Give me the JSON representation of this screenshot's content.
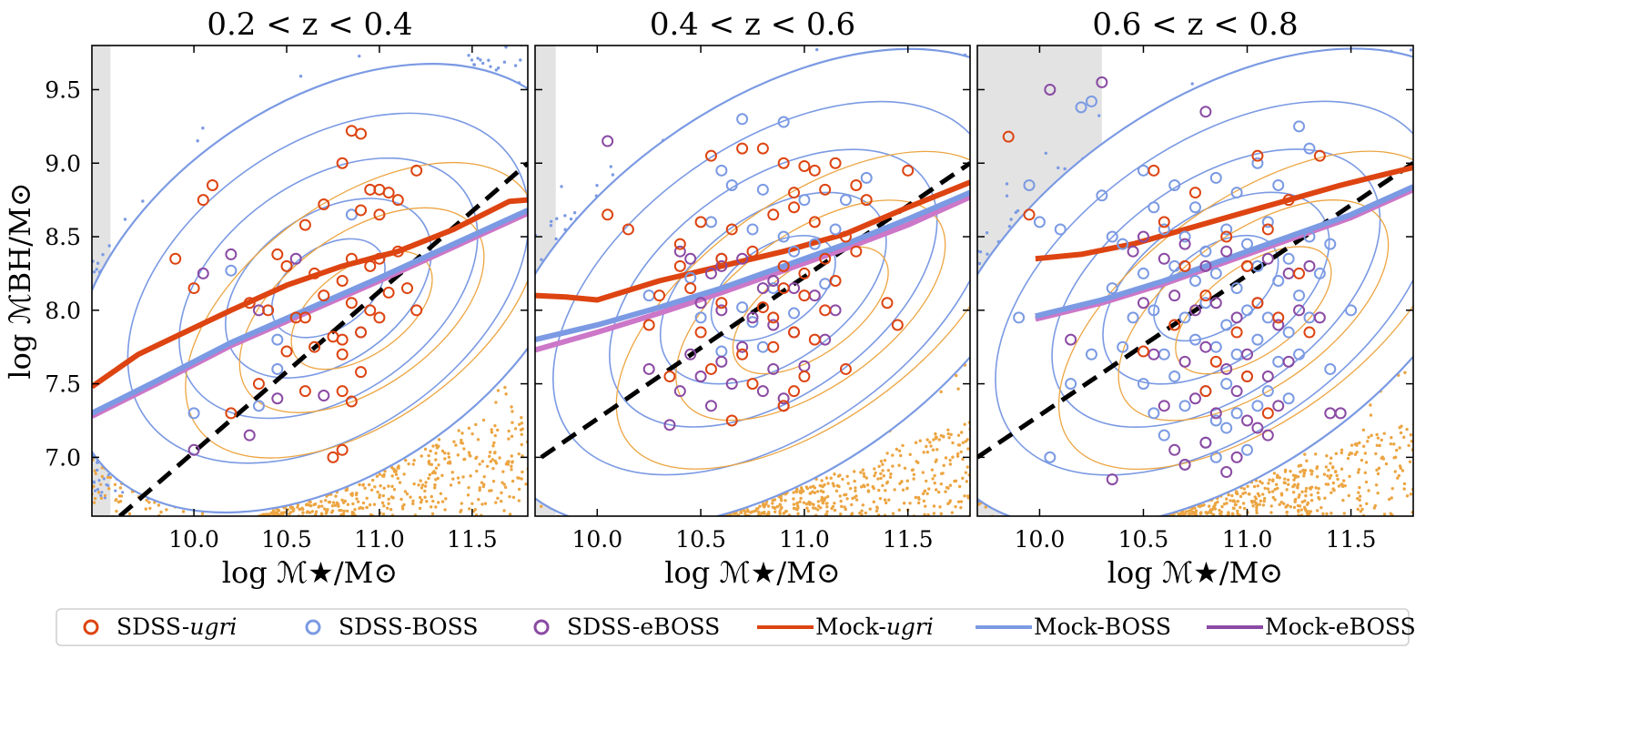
{
  "colors": {
    "sdss_ugri": "#dd4411",
    "sdss_boss": "#7b9ae3",
    "sdss_eboss": "#8a4aa3",
    "mock_ugri": "#dd4411",
    "mock_boss": "#7b9ae3",
    "mock_eboss": "#cc77c8",
    "mock_points_orange": "#eca542",
    "relation_line": "#000000",
    "excluded_region": "#e3e3e3"
  },
  "chart_data": [
    {
      "type": "scatter",
      "title": "0.2 < z < 0.4",
      "xlabel": "log ℳ★/M⊙",
      "ylabel": "log ℳBH/M⊙",
      "xlim": [
        9.45,
        11.8
      ],
      "ylim": [
        6.6,
        9.8
      ],
      "xticks": [
        "10.0",
        "10.5",
        "11.0",
        "11.5"
      ],
      "yticks": [
        "7.0",
        "7.5",
        "8.0",
        "8.5",
        "9.0",
        "9.5"
      ],
      "excluded_below_logMstar": 9.55,
      "reference_relation": {
        "x": [
          9.6,
          11.8
        ],
        "y": [
          6.6,
          9.0
        ]
      },
      "series": [
        {
          "name": "Mock-ugri",
          "x": [
            9.45,
            9.7,
            9.9,
            10.2,
            10.5,
            10.8,
            11.1,
            11.4,
            11.7,
            11.8
          ],
          "y": [
            7.48,
            7.7,
            7.82,
            8.0,
            8.17,
            8.3,
            8.4,
            8.55,
            8.74,
            8.75
          ]
        },
        {
          "name": "Mock-BOSS",
          "x": [
            9.45,
            9.8,
            10.2,
            10.6,
            11.0,
            11.4,
            11.8
          ],
          "y": [
            7.3,
            7.52,
            7.78,
            8.0,
            8.22,
            8.45,
            8.68
          ]
        },
        {
          "name": "Mock-eBOSS",
          "x": [
            9.45,
            9.8,
            10.2,
            10.6,
            11.0,
            11.4,
            11.8
          ],
          "y": [
            7.28,
            7.5,
            7.76,
            7.98,
            8.2,
            8.43,
            8.66
          ]
        },
        {
          "name": "SDSS-ugri",
          "x": [
            10.85,
            10.9,
            10.8,
            10.95,
            11.0,
            11.05,
            11.1,
            11.2,
            10.6,
            10.7,
            10.9,
            11.0,
            10.5,
            10.45,
            10.65,
            10.8,
            10.85,
            10.95,
            11.0,
            11.1,
            10.4,
            10.55,
            10.7,
            10.85,
            10.95,
            11.05,
            11.15,
            10.3,
            10.6,
            10.75,
            10.8,
            10.9,
            11.0,
            10.5,
            10.65,
            10.8,
            10.9,
            10.35,
            10.6,
            10.8,
            10.85,
            9.9,
            10.0,
            10.05,
            10.1,
            11.2,
            10.2,
            10.75,
            10.8
          ],
          "y": [
            9.22,
            9.2,
            9.0,
            8.82,
            8.82,
            8.8,
            8.75,
            8.95,
            8.58,
            8.72,
            8.68,
            8.65,
            8.3,
            8.38,
            8.25,
            8.2,
            8.35,
            8.3,
            8.35,
            8.4,
            8.0,
            7.95,
            8.1,
            8.05,
            8.0,
            8.12,
            8.15,
            8.05,
            7.95,
            7.82,
            7.8,
            7.85,
            7.95,
            7.72,
            7.75,
            7.7,
            7.58,
            7.5,
            7.45,
            7.45,
            7.38,
            8.35,
            8.15,
            8.75,
            8.85,
            8.0,
            7.3,
            7.0,
            7.05
          ]
        },
        {
          "name": "SDSS-BOSS",
          "x": [
            10.2,
            10.45,
            10.35,
            10.85,
            10.0,
            10.45,
            10.9
          ],
          "y": [
            8.27,
            7.8,
            7.35,
            8.65,
            7.3,
            7.6,
            7.85
          ]
        },
        {
          "name": "SDSS-eBOSS",
          "x": [
            10.05,
            10.2,
            10.35,
            10.45,
            10.55,
            10.7,
            10.3,
            10.0
          ],
          "y": [
            8.25,
            8.38,
            8.0,
            7.4,
            8.35,
            7.42,
            7.15,
            7.05
          ]
        }
      ]
    },
    {
      "type": "scatter",
      "title": "0.4 < z < 0.6",
      "xlabel": "log ℳ★/M⊙",
      "ylabel": "",
      "xlim": [
        9.7,
        11.8
      ],
      "ylim": [
        6.6,
        9.8
      ],
      "xticks": [
        "10.0",
        "10.5",
        "11.0",
        "11.5"
      ],
      "yticks": [],
      "excluded_below_logMstar": 9.8,
      "reference_relation": {
        "x": [
          9.73,
          11.8
        ],
        "y": [
          7.0,
          9.0
        ]
      },
      "series": [
        {
          "name": "Mock-ugri",
          "x": [
            9.7,
            9.85,
            10.0,
            10.3,
            10.6,
            10.9,
            11.2,
            11.5,
            11.8
          ],
          "y": [
            8.1,
            8.09,
            8.07,
            8.2,
            8.3,
            8.4,
            8.52,
            8.7,
            8.87
          ]
        },
        {
          "name": "Mock-BOSS",
          "x": [
            9.7,
            10.0,
            10.3,
            10.6,
            10.9,
            11.2,
            11.5,
            11.8
          ],
          "y": [
            7.8,
            7.9,
            8.02,
            8.15,
            8.3,
            8.45,
            8.62,
            8.8
          ]
        },
        {
          "name": "Mock-eBOSS",
          "x": [
            9.7,
            10.0,
            10.3,
            10.6,
            10.9,
            11.2,
            11.5,
            11.8
          ],
          "y": [
            7.73,
            7.85,
            7.98,
            8.12,
            8.27,
            8.42,
            8.58,
            8.77
          ]
        },
        {
          "name": "SDSS-ugri",
          "x": [
            10.55,
            10.7,
            10.8,
            10.9,
            11.0,
            11.05,
            11.15,
            10.95,
            11.1,
            11.25,
            10.5,
            10.65,
            10.85,
            10.95,
            11.05,
            11.2,
            11.3,
            10.4,
            10.6,
            10.75,
            10.9,
            11.0,
            11.1,
            11.15,
            11.25,
            10.3,
            10.45,
            10.6,
            10.8,
            10.9,
            11.0,
            11.1,
            11.4,
            10.25,
            10.5,
            10.7,
            10.85,
            10.95,
            11.05,
            11.2,
            10.35,
            10.55,
            10.75,
            10.95,
            11.45,
            10.05,
            10.15,
            10.4,
            10.65,
            10.9,
            11.0,
            10.85,
            11.5
          ],
          "y": [
            9.05,
            9.1,
            9.1,
            9.0,
            8.98,
            8.95,
            9.0,
            8.8,
            8.82,
            8.85,
            8.6,
            8.55,
            8.65,
            8.7,
            8.6,
            8.5,
            8.75,
            8.3,
            8.35,
            8.4,
            8.3,
            8.25,
            8.35,
            8.2,
            8.4,
            8.1,
            8.15,
            8.05,
            8.02,
            8.15,
            8.1,
            8.0,
            8.05,
            7.9,
            7.85,
            7.7,
            7.75,
            7.85,
            7.8,
            7.6,
            7.55,
            7.6,
            7.5,
            7.45,
            7.9,
            8.65,
            8.55,
            8.45,
            7.25,
            7.35,
            7.55,
            7.95,
            8.95
          ]
        },
        {
          "name": "SDSS-BOSS",
          "x": [
            10.7,
            10.9,
            10.6,
            10.65,
            10.8,
            11.0,
            11.2,
            11.3,
            10.55,
            10.75,
            10.9,
            11.05,
            11.15,
            10.6,
            10.95,
            10.45,
            10.85,
            11.1,
            10.25,
            10.7,
            10.95,
            10.5,
            10.75,
            10.6,
            10.8
          ],
          "y": [
            9.3,
            9.28,
            8.95,
            8.85,
            8.82,
            8.75,
            8.75,
            8.9,
            8.6,
            8.55,
            8.5,
            8.45,
            8.55,
            8.35,
            8.4,
            8.22,
            8.15,
            8.18,
            8.1,
            8.02,
            7.98,
            7.95,
            7.92,
            7.72,
            7.75
          ]
        },
        {
          "name": "SDSS-eBOSS",
          "x": [
            10.05,
            10.4,
            10.45,
            10.55,
            10.6,
            10.7,
            10.8,
            10.85,
            10.95,
            11.05,
            11.15,
            10.5,
            10.6,
            10.75,
            10.85,
            10.95,
            11.1,
            10.45,
            10.6,
            10.7,
            10.85,
            11.0,
            10.5,
            10.65,
            10.8,
            10.9,
            10.25,
            10.4,
            10.55,
            10.35,
            10.9
          ],
          "y": [
            9.15,
            8.4,
            8.35,
            8.25,
            8.3,
            8.35,
            8.15,
            8.2,
            8.15,
            8.1,
            8.0,
            8.05,
            8.0,
            7.95,
            7.9,
            7.85,
            7.8,
            7.7,
            7.65,
            7.75,
            7.6,
            7.62,
            7.55,
            7.5,
            7.45,
            7.4,
            7.6,
            7.45,
            7.35,
            7.22,
            7.35
          ]
        }
      ]
    },
    {
      "type": "scatter",
      "title": "0.6 < z < 0.8",
      "xlabel": "log ℳ★/M⊙",
      "ylabel": "",
      "xlim": [
        9.7,
        11.8
      ],
      "ylim": [
        6.6,
        9.8
      ],
      "xticks": [
        "10.0",
        "10.5",
        "11.0",
        "11.5"
      ],
      "yticks": [],
      "excluded_below_logMstar": 10.3,
      "reference_relation": {
        "x": [
          9.7,
          11.8
        ],
        "y": [
          7.0,
          9.0
        ]
      },
      "series": [
        {
          "name": "Mock-ugri",
          "x": [
            9.98,
            10.2,
            10.45,
            10.7,
            10.95,
            11.2,
            11.45,
            11.65,
            11.8
          ],
          "y": [
            8.35,
            8.38,
            8.45,
            8.55,
            8.65,
            8.75,
            8.85,
            8.92,
            8.97
          ]
        },
        {
          "name": "Mock-BOSS",
          "x": [
            9.98,
            10.3,
            10.6,
            10.9,
            11.2,
            11.5,
            11.8
          ],
          "y": [
            7.96,
            8.07,
            8.2,
            8.35,
            8.5,
            8.65,
            8.84
          ]
        },
        {
          "name": "Mock-eBOSS",
          "x": [
            9.98,
            10.3,
            10.6,
            10.9,
            11.2,
            11.5,
            11.8
          ],
          "y": [
            7.94,
            8.05,
            8.18,
            8.33,
            8.48,
            8.63,
            8.82
          ]
        },
        {
          "name": "SDSS-ugri",
          "x": [
            9.85,
            10.55,
            11.05,
            11.35,
            10.75,
            11.2,
            10.6,
            10.9,
            11.1,
            10.7,
            11.0,
            11.25,
            10.8,
            11.05,
            10.65,
            10.95,
            11.15,
            11.3,
            10.85,
            11.0,
            9.95,
            10.5,
            10.8,
            11.1
          ],
          "y": [
            9.18,
            8.95,
            9.05,
            9.05,
            8.8,
            8.75,
            8.6,
            8.5,
            8.55,
            8.3,
            8.3,
            8.25,
            8.1,
            8.05,
            7.9,
            7.85,
            7.95,
            7.85,
            7.65,
            7.55,
            8.65,
            7.72,
            7.45,
            7.3
          ]
        },
        {
          "name": "SDSS-BOSS",
          "x": [
            10.2,
            10.25,
            9.95,
            10.0,
            10.1,
            10.3,
            10.35,
            10.5,
            10.55,
            10.65,
            10.75,
            10.85,
            10.95,
            11.05,
            11.15,
            11.25,
            10.4,
            10.6,
            10.7,
            10.8,
            10.9,
            11.0,
            11.1,
            11.2,
            11.3,
            11.4,
            10.35,
            10.5,
            10.65,
            10.75,
            10.85,
            10.95,
            11.05,
            11.15,
            11.25,
            11.35,
            10.45,
            10.55,
            10.7,
            10.8,
            10.9,
            11.0,
            11.1,
            11.2,
            11.3,
            10.4,
            10.6,
            10.75,
            10.85,
            10.95,
            11.05,
            11.15,
            11.25,
            10.5,
            10.65,
            10.8,
            10.9,
            11.0,
            11.1,
            10.55,
            10.7,
            10.85,
            10.95,
            11.05,
            11.2,
            10.6,
            10.8,
            10.9,
            11.0,
            10.7,
            10.85,
            11.5,
            11.4,
            10.15,
            10.25,
            9.9,
            10.05,
            11.3
          ],
          "y": [
            9.38,
            9.42,
            8.85,
            8.6,
            8.55,
            8.78,
            8.5,
            8.95,
            8.7,
            8.85,
            8.7,
            8.9,
            8.8,
            9.0,
            8.85,
            9.25,
            8.45,
            8.55,
            8.5,
            8.4,
            8.55,
            8.45,
            8.6,
            8.35,
            8.5,
            8.45,
            8.15,
            8.25,
            8.3,
            8.2,
            8.25,
            8.15,
            8.3,
            8.2,
            8.1,
            8.25,
            7.95,
            8.0,
            7.95,
            8.05,
            7.9,
            8.0,
            7.95,
            7.85,
            7.95,
            7.75,
            7.7,
            7.8,
            7.75,
            7.7,
            7.8,
            7.65,
            7.7,
            7.5,
            7.55,
            7.45,
            7.5,
            7.55,
            7.45,
            7.3,
            7.35,
            7.25,
            7.3,
            7.35,
            7.4,
            7.15,
            7.1,
            7.2,
            7.05,
            6.95,
            7.0,
            8.0,
            7.6,
            7.5,
            7.7,
            7.95,
            7.0,
            9.1
          ]
        },
        {
          "name": "SDSS-eBOSS",
          "x": [
            10.05,
            10.3,
            10.45,
            10.6,
            10.7,
            10.8,
            10.9,
            11.0,
            11.1,
            11.2,
            11.3,
            10.5,
            10.65,
            10.75,
            10.85,
            10.95,
            11.05,
            11.15,
            11.25,
            11.35,
            10.55,
            10.7,
            10.8,
            10.9,
            11.0,
            11.1,
            11.2,
            11.4,
            10.6,
            10.75,
            10.85,
            11.0,
            11.15,
            10.65,
            10.8,
            10.95,
            11.1,
            10.7,
            10.9,
            11.05,
            10.5,
            10.8,
            10.15,
            10.35,
            10.95,
            11.45
          ],
          "y": [
            9.5,
            9.55,
            8.4,
            8.35,
            8.45,
            8.3,
            8.4,
            8.3,
            8.35,
            8.25,
            8.3,
            8.05,
            8.1,
            8.0,
            8.05,
            7.95,
            8.05,
            7.9,
            8.0,
            7.95,
            7.7,
            7.65,
            7.75,
            7.6,
            7.7,
            7.55,
            7.65,
            7.3,
            7.35,
            7.4,
            7.3,
            7.25,
            7.35,
            7.05,
            7.1,
            7.0,
            7.15,
            6.95,
            6.9,
            7.2,
            8.5,
            9.35,
            7.8,
            6.85,
            7.45,
            7.3
          ]
        }
      ]
    }
  ],
  "legend": [
    {
      "kind": "circle",
      "color": "#dd4411",
      "label": "SDSS-",
      "italic": "ugri"
    },
    {
      "kind": "circle",
      "color": "#7b9ae3",
      "label": "SDSS-BOSS",
      "italic": ""
    },
    {
      "kind": "circle",
      "color": "#8a4aa3",
      "label": "SDSS-eBOSS",
      "italic": ""
    },
    {
      "kind": "line",
      "color": "#dd4411",
      "label": "Mock-",
      "italic": "ugri"
    },
    {
      "kind": "line",
      "color": "#7b9ae3",
      "label": "Mock-BOSS",
      "italic": ""
    },
    {
      "kind": "line",
      "color": "#8a4aa3",
      "label": "Mock-eBOSS",
      "italic": ""
    }
  ]
}
